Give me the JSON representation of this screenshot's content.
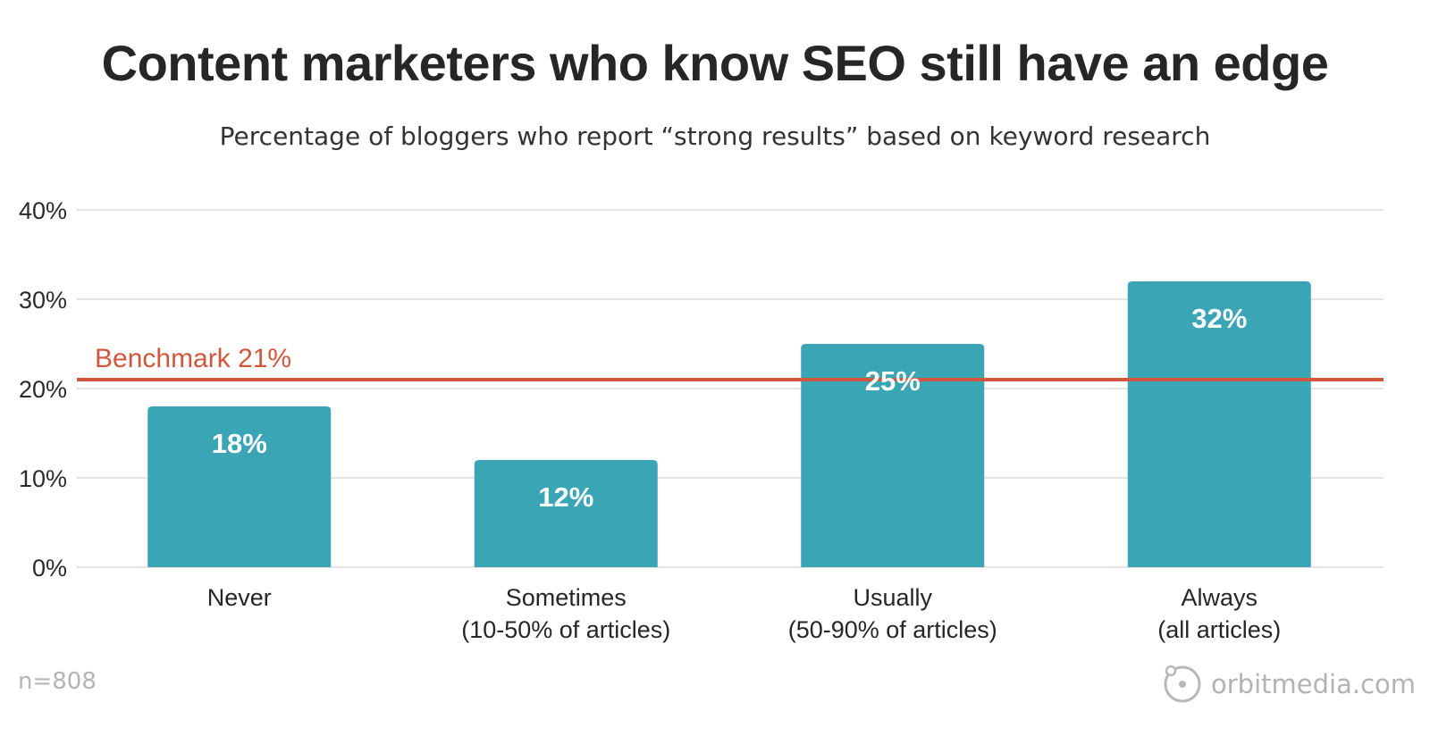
{
  "chart_data": {
    "type": "bar",
    "title": "Content marketers who know SEO still have an edge",
    "subtitle": "Percentage of bloggers who report “strong results” based on keyword research",
    "categories": [
      [
        "Never"
      ],
      [
        "Sometimes",
        "(10-50% of articles)"
      ],
      [
        "Usually",
        "(50-90% of articles)"
      ],
      [
        "Always",
        "(all articles)"
      ]
    ],
    "values": [
      18,
      12,
      25,
      32
    ],
    "value_labels": [
      "18%",
      "12%",
      "25%",
      "32%"
    ],
    "ylim": [
      0,
      40
    ],
    "yticks": [
      0,
      10,
      20,
      30,
      40
    ],
    "ytick_labels": [
      "0%",
      "10%",
      "20%",
      "30%",
      "40%"
    ],
    "grid": true,
    "benchmark": {
      "value": 21,
      "label": "Benchmark 21%",
      "color": "#d1563c"
    },
    "bar_color": "#3aa5b4",
    "sample_note": "n=808",
    "source": "orbitmedia.com"
  }
}
